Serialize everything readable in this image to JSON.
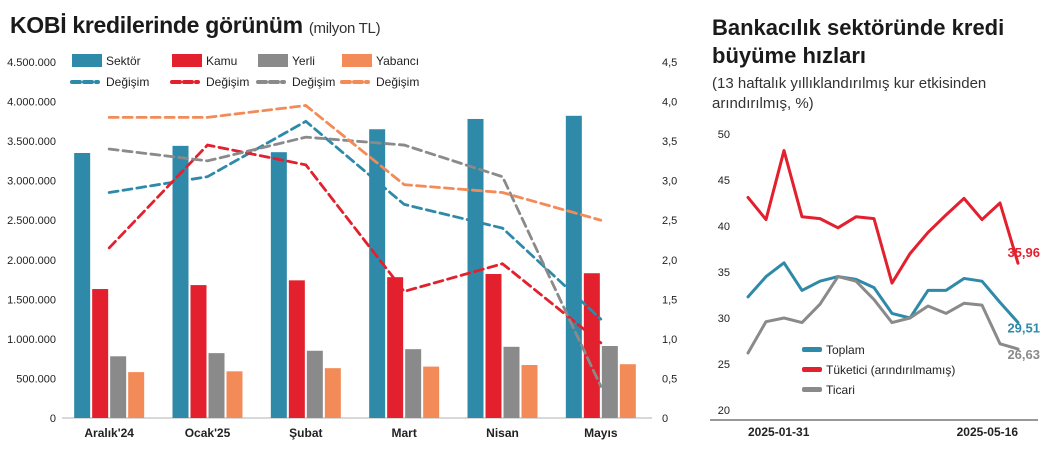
{
  "chart_data": [
    {
      "type": "bar",
      "title": "KOBİ kredilerinde görünüm",
      "unit": "(milyon TL)",
      "categories": [
        "Aralık'24",
        "Ocak'25",
        "Şubat",
        "Mart",
        "Nisan",
        "Mayıs"
      ],
      "ylim": [
        0,
        4500000
      ],
      "yticks": [
        "0",
        "500.000",
        "1.000.000",
        "1.500.000",
        "2.000.000",
        "2.500.000",
        "3.000.000",
        "3.500.000",
        "4.000.000",
        "4.500.000"
      ],
      "y2lim": [
        0,
        4.5
      ],
      "y2ticks": [
        "0",
        "0,5",
        "1,0",
        "1,5",
        "2,0",
        "2,5",
        "3,0",
        "3,5",
        "4,0",
        "4,5"
      ],
      "grid": false,
      "legend": "top",
      "series": [
        {
          "name": "Sektör",
          "color": "#2e8aa8",
          "values": [
            3350000,
            3440000,
            3360000,
            3650000,
            3780000,
            3820000
          ]
        },
        {
          "name": "Kamu",
          "color": "#e3202d",
          "values": [
            1630000,
            1680000,
            1740000,
            1780000,
            1820000,
            1830000
          ]
        },
        {
          "name": "Yerli",
          "color": "#8a8a8a",
          "values": [
            780000,
            820000,
            850000,
            870000,
            900000,
            910000
          ]
        },
        {
          "name": "Yabancı",
          "color": "#f38b58",
          "values": [
            580000,
            590000,
            630000,
            650000,
            670000,
            680000
          ]
        }
      ],
      "line_series": [
        {
          "name": "Değişim",
          "color": "#2e8aa8",
          "x": [
            0,
            1,
            2,
            3,
            4,
            5
          ],
          "values": [
            2.85,
            3.05,
            3.75,
            2.7,
            2.4,
            1.25
          ]
        },
        {
          "name": "Değişim",
          "color": "#e3202d",
          "x": [
            0,
            1,
            2,
            3,
            4,
            5
          ],
          "values": [
            2.15,
            3.45,
            3.2,
            1.6,
            1.95,
            0.95
          ]
        },
        {
          "name": "Değişim",
          "color": "#8a8a8a",
          "x": [
            0,
            1,
            2,
            3,
            4,
            5
          ],
          "values": [
            3.4,
            3.25,
            3.55,
            3.45,
            3.05,
            0.4
          ]
        },
        {
          "name": "Değişim",
          "color": "#f38b58",
          "x": [
            0,
            1,
            2,
            3,
            4,
            5
          ],
          "values": [
            3.8,
            3.8,
            3.95,
            2.95,
            2.85,
            2.5
          ]
        }
      ]
    },
    {
      "type": "line",
      "title": "Bankacılık sektöründe kredi büyüme hızları",
      "subtitle": "(13 haftalık yıllıklandırılmış kur etkisinden arındırılmış, %)",
      "x_labels": [
        "2025-01-31",
        "2025-05-16"
      ],
      "ylim": [
        20,
        50
      ],
      "yticks": [
        "20",
        "25",
        "30",
        "35",
        "40",
        "45",
        "50"
      ],
      "grid": false,
      "legend": "bottom-left",
      "series": [
        {
          "name": "Toplam",
          "color": "#2e8aa8",
          "end_label": "29,51",
          "values": [
            32.3,
            34.5,
            36.0,
            33.0,
            34.0,
            34.5,
            34.2,
            33.3,
            30.5,
            30.0,
            33.0,
            33.0,
            34.3,
            34.0,
            31.7,
            29.51
          ]
        },
        {
          "name": "Tüketici (arındırılmamış)",
          "color": "#e3202d",
          "end_label": "35,96",
          "values": [
            43.1,
            40.7,
            48.2,
            41.0,
            40.8,
            39.8,
            41.0,
            40.8,
            33.8,
            37.0,
            39.3,
            41.2,
            43.0,
            40.7,
            42.5,
            35.96
          ]
        },
        {
          "name": "Ticari",
          "color": "#8a8a8a",
          "end_label": "26,63",
          "values": [
            26.2,
            29.6,
            30.0,
            29.5,
            31.5,
            34.5,
            34.0,
            32.0,
            29.5,
            30.0,
            31.3,
            30.5,
            31.6,
            31.4,
            27.2,
            26.63
          ]
        }
      ]
    }
  ]
}
